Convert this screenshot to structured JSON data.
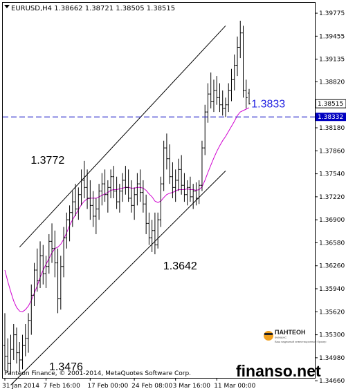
{
  "chart_data": {
    "type": "line",
    "symbol": "EURUSD",
    "timeframe": "H4",
    "header_values": [
      "1.38662",
      "1.38721",
      "1.38505",
      "1.38515"
    ],
    "ylim": [
      1.347,
      1.3992
    ],
    "y_ticks": [
      "1.39775",
      "1.39455",
      "1.39135",
      "1.38820",
      "1.38500",
      "1.38180",
      "1.37860",
      "1.37540",
      "1.37220",
      "1.36900",
      "1.36580",
      "1.36260",
      "1.35940",
      "1.35620",
      "1.35300",
      "1.34980",
      "1.34660"
    ],
    "x_ticks": [
      "31 Jan 2014",
      "7 Feb 16:00",
      "17 Feb 00:00",
      "24 Feb 08:00",
      "3 Mar 16:00",
      "11 Mar 00:00"
    ],
    "last_price": "1.38515",
    "level_price": "1.38332",
    "level_value": 1.38332,
    "annotations": [
      {
        "text": "1.3772",
        "x_bar": 21,
        "y": 1.3772
      },
      {
        "text": "1.3642",
        "x_bar": 51,
        "y": 1.3642
      },
      {
        "text": "1.3476",
        "x_bar": 8,
        "y": 1.3476
      },
      {
        "text": "1.3833",
        "x_bar": 80,
        "y": 1.3833
      }
    ],
    "channel_upper": [
      [
        5,
        1.3652
      ],
      [
        75,
        1.396
      ]
    ],
    "channel_lower": [
      [
        2,
        1.346
      ],
      [
        75,
        1.3758
      ]
    ],
    "ma_color": "#d000d0",
    "level_color": "#0000c0",
    "bars": [
      {
        "o": 1.3515,
        "h": 1.356,
        "l": 1.348,
        "c": 1.35
      },
      {
        "o": 1.35,
        "h": 1.3525,
        "l": 1.3478,
        "c": 1.349
      },
      {
        "o": 1.349,
        "h": 1.353,
        "l": 1.3476,
        "c": 1.351
      },
      {
        "o": 1.351,
        "h": 1.3545,
        "l": 1.3495,
        "c": 1.353
      },
      {
        "o": 1.353,
        "h": 1.354,
        "l": 1.349,
        "c": 1.3505
      },
      {
        "o": 1.3505,
        "h": 1.352,
        "l": 1.3478,
        "c": 1.3495
      },
      {
        "o": 1.3495,
        "h": 1.353,
        "l": 1.3482,
        "c": 1.3515
      },
      {
        "o": 1.3515,
        "h": 1.3545,
        "l": 1.35,
        "c": 1.3525
      },
      {
        "o": 1.3525,
        "h": 1.356,
        "l": 1.3505,
        "c": 1.355
      },
      {
        "o": 1.355,
        "h": 1.36,
        "l": 1.353,
        "c": 1.3585
      },
      {
        "o": 1.3585,
        "h": 1.363,
        "l": 1.357,
        "c": 1.362
      },
      {
        "o": 1.362,
        "h": 1.365,
        "l": 1.359,
        "c": 1.3605
      },
      {
        "o": 1.3605,
        "h": 1.366,
        "l": 1.3595,
        "c": 1.364
      },
      {
        "o": 1.364,
        "h": 1.3655,
        "l": 1.36,
        "c": 1.3615
      },
      {
        "o": 1.3615,
        "h": 1.364,
        "l": 1.3595,
        "c": 1.3625
      },
      {
        "o": 1.3625,
        "h": 1.367,
        "l": 1.3615,
        "c": 1.366
      },
      {
        "o": 1.366,
        "h": 1.3685,
        "l": 1.363,
        "c": 1.365
      },
      {
        "o": 1.365,
        "h": 1.3675,
        "l": 1.361,
        "c": 1.363
      },
      {
        "o": 1.363,
        "h": 1.365,
        "l": 1.356,
        "c": 1.358
      },
      {
        "o": 1.358,
        "h": 1.364,
        "l": 1.3565,
        "c": 1.3625
      },
      {
        "o": 1.3625,
        "h": 1.368,
        "l": 1.361,
        "c": 1.3665
      },
      {
        "o": 1.3665,
        "h": 1.37,
        "l": 1.365,
        "c": 1.369
      },
      {
        "o": 1.369,
        "h": 1.371,
        "l": 1.366,
        "c": 1.37
      },
      {
        "o": 1.37,
        "h": 1.373,
        "l": 1.368,
        "c": 1.3715
      },
      {
        "o": 1.3715,
        "h": 1.374,
        "l": 1.3695,
        "c": 1.3705
      },
      {
        "o": 1.3705,
        "h": 1.3735,
        "l": 1.369,
        "c": 1.3725
      },
      {
        "o": 1.3725,
        "h": 1.376,
        "l": 1.371,
        "c": 1.3745
      },
      {
        "o": 1.3745,
        "h": 1.3772,
        "l": 1.372,
        "c": 1.3735
      },
      {
        "o": 1.3735,
        "h": 1.376,
        "l": 1.3705,
        "c": 1.372
      },
      {
        "o": 1.372,
        "h": 1.3745,
        "l": 1.369,
        "c": 1.371
      },
      {
        "o": 1.371,
        "h": 1.373,
        "l": 1.368,
        "c": 1.3695
      },
      {
        "o": 1.3695,
        "h": 1.372,
        "l": 1.367,
        "c": 1.3705
      },
      {
        "o": 1.3705,
        "h": 1.374,
        "l": 1.369,
        "c": 1.373
      },
      {
        "o": 1.373,
        "h": 1.3755,
        "l": 1.371,
        "c": 1.374
      },
      {
        "o": 1.374,
        "h": 1.376,
        "l": 1.3715,
        "c": 1.3725
      },
      {
        "o": 1.3725,
        "h": 1.3745,
        "l": 1.37,
        "c": 1.3735
      },
      {
        "o": 1.3735,
        "h": 1.376,
        "l": 1.372,
        "c": 1.375
      },
      {
        "o": 1.375,
        "h": 1.3765,
        "l": 1.372,
        "c": 1.373
      },
      {
        "o": 1.373,
        "h": 1.375,
        "l": 1.3705,
        "c": 1.3715
      },
      {
        "o": 1.3715,
        "h": 1.374,
        "l": 1.37,
        "c": 1.373
      },
      {
        "o": 1.373,
        "h": 1.3755,
        "l": 1.3715,
        "c": 1.3745
      },
      {
        "o": 1.3745,
        "h": 1.3765,
        "l": 1.3725,
        "c": 1.3735
      },
      {
        "o": 1.3735,
        "h": 1.376,
        "l": 1.3715,
        "c": 1.372
      },
      {
        "o": 1.372,
        "h": 1.3745,
        "l": 1.37,
        "c": 1.371
      },
      {
        "o": 1.371,
        "h": 1.3735,
        "l": 1.369,
        "c": 1.3725
      },
      {
        "o": 1.3725,
        "h": 1.3755,
        "l": 1.371,
        "c": 1.374
      },
      {
        "o": 1.374,
        "h": 1.376,
        "l": 1.3715,
        "c": 1.3728
      },
      {
        "o": 1.3728,
        "h": 1.3745,
        "l": 1.37,
        "c": 1.3712
      },
      {
        "o": 1.3712,
        "h": 1.3725,
        "l": 1.367,
        "c": 1.3685
      },
      {
        "o": 1.3685,
        "h": 1.37,
        "l": 1.3655,
        "c": 1.3665
      },
      {
        "o": 1.3665,
        "h": 1.369,
        "l": 1.3645,
        "c": 1.3675
      },
      {
        "o": 1.3675,
        "h": 1.37,
        "l": 1.3642,
        "c": 1.3655
      },
      {
        "o": 1.3655,
        "h": 1.37,
        "l": 1.365,
        "c": 1.369
      },
      {
        "o": 1.369,
        "h": 1.375,
        "l": 1.368,
        "c": 1.374
      },
      {
        "o": 1.374,
        "h": 1.38,
        "l": 1.373,
        "c": 1.379
      },
      {
        "o": 1.379,
        "h": 1.381,
        "l": 1.376,
        "c": 1.3775
      },
      {
        "o": 1.3775,
        "h": 1.3795,
        "l": 1.374,
        "c": 1.375
      },
      {
        "o": 1.375,
        "h": 1.377,
        "l": 1.372,
        "c": 1.3735
      },
      {
        "o": 1.3735,
        "h": 1.376,
        "l": 1.3715,
        "c": 1.3745
      },
      {
        "o": 1.3745,
        "h": 1.3775,
        "l": 1.373,
        "c": 1.376
      },
      {
        "o": 1.376,
        "h": 1.378,
        "l": 1.3725,
        "c": 1.3738
      },
      {
        "o": 1.3738,
        "h": 1.3755,
        "l": 1.3715,
        "c": 1.3725
      },
      {
        "o": 1.3725,
        "h": 1.3745,
        "l": 1.371,
        "c": 1.3735
      },
      {
        "o": 1.3735,
        "h": 1.375,
        "l": 1.3715,
        "c": 1.3722
      },
      {
        "o": 1.3722,
        "h": 1.374,
        "l": 1.3705,
        "c": 1.373
      },
      {
        "o": 1.373,
        "h": 1.3742,
        "l": 1.371,
        "c": 1.372
      },
      {
        "o": 1.372,
        "h": 1.3745,
        "l": 1.3712,
        "c": 1.3738
      },
      {
        "o": 1.3738,
        "h": 1.38,
        "l": 1.373,
        "c": 1.379
      },
      {
        "o": 1.379,
        "h": 1.385,
        "l": 1.378,
        "c": 1.384
      },
      {
        "o": 1.384,
        "h": 1.388,
        "l": 1.3825,
        "c": 1.3865
      },
      {
        "o": 1.3865,
        "h": 1.3895,
        "l": 1.3845,
        "c": 1.3855
      },
      {
        "o": 1.3855,
        "h": 1.3885,
        "l": 1.384,
        "c": 1.387
      },
      {
        "o": 1.387,
        "h": 1.389,
        "l": 1.385,
        "c": 1.386
      },
      {
        "o": 1.386,
        "h": 1.388,
        "l": 1.384,
        "c": 1.385
      },
      {
        "o": 1.385,
        "h": 1.387,
        "l": 1.3835,
        "c": 1.3845
      },
      {
        "o": 1.3845,
        "h": 1.386,
        "l": 1.3833,
        "c": 1.385
      },
      {
        "o": 1.385,
        "h": 1.388,
        "l": 1.384,
        "c": 1.387
      },
      {
        "o": 1.387,
        "h": 1.39,
        "l": 1.3855,
        "c": 1.3885
      },
      {
        "o": 1.3885,
        "h": 1.392,
        "l": 1.387,
        "c": 1.3905
      },
      {
        "o": 1.3905,
        "h": 1.3945,
        "l": 1.389,
        "c": 1.393
      },
      {
        "o": 1.393,
        "h": 1.3967,
        "l": 1.3915,
        "c": 1.395
      },
      {
        "o": 1.395,
        "h": 1.396,
        "l": 1.386,
        "c": 1.387
      },
      {
        "o": 1.387,
        "h": 1.3885,
        "l": 1.3845,
        "c": 1.386
      },
      {
        "o": 1.38662,
        "h": 1.38721,
        "l": 1.38505,
        "c": 1.38515
      }
    ],
    "ma": [
      1.362,
      1.3604,
      1.359,
      1.3577,
      1.3568,
      1.3563,
      1.3562,
      1.3565,
      1.357,
      1.3578,
      1.3588,
      1.3598,
      1.361,
      1.362,
      1.3628,
      1.3636,
      1.3644,
      1.365,
      1.3652,
      1.3656,
      1.3663,
      1.3672,
      1.3682,
      1.369,
      1.3697,
      1.3704,
      1.3711,
      1.3716,
      1.3719,
      1.372,
      1.372,
      1.372,
      1.3722,
      1.3724,
      1.3726,
      1.3728,
      1.3731,
      1.3732,
      1.3732,
      1.3733,
      1.3734,
      1.3735,
      1.3735,
      1.3734,
      1.3734,
      1.3735,
      1.3735,
      1.3734,
      1.3731,
      1.3726,
      1.3722,
      1.3716,
      1.3714,
      1.3716,
      1.3721,
      1.3725,
      1.3727,
      1.3728,
      1.373,
      1.3732,
      1.3732,
      1.3732,
      1.3733,
      1.3732,
      1.3732,
      1.3731,
      1.3732,
      1.3736,
      1.3745,
      1.3756,
      1.3766,
      1.3776,
      1.3785,
      1.3793,
      1.38,
      1.3806,
      1.3813,
      1.382,
      1.3827,
      1.3835,
      1.384,
      1.3842,
      1.3844,
      1.3846
    ]
  },
  "watermark": {
    "copyright": "Panteon Finance, © 2001-2014, MetaQuotes Software Corp.",
    "brand": "finanso.net",
    "logo_name": "ПАНТЕОН",
    "logo_sub": "ФИНАНС",
    "logo_desc": "Ваш надежный инвестиционный брокер"
  }
}
